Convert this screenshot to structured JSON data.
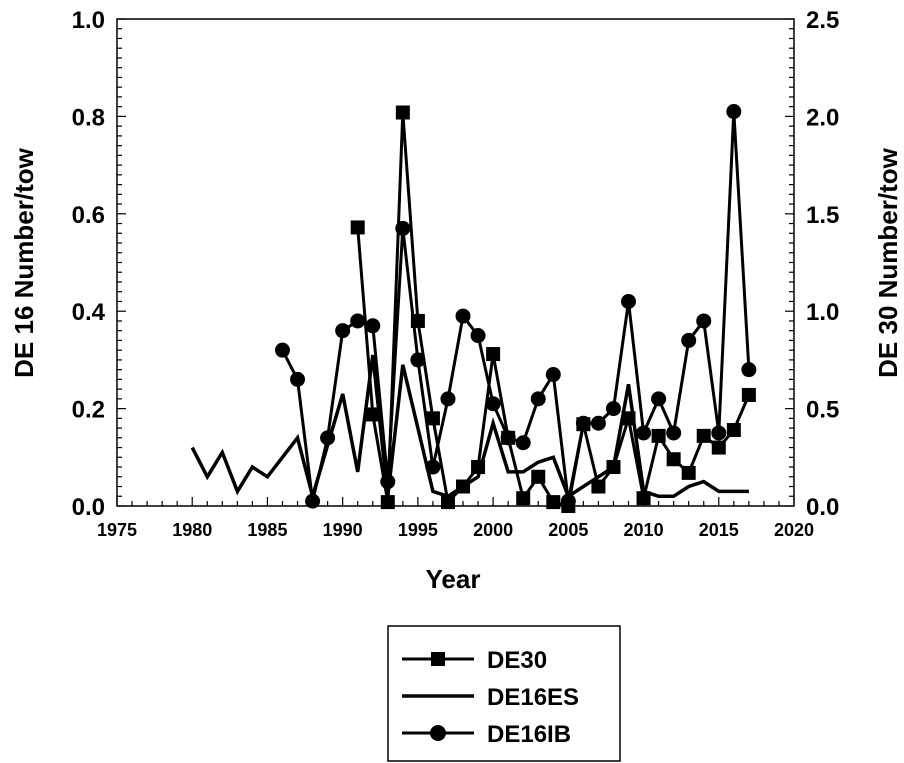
{
  "chart_data": {
    "type": "line",
    "xlabel": "Year",
    "ylabel_left": "DE 16 Number/tow",
    "ylabel_right": "DE 30 Number/tow",
    "xlim": [
      1975,
      2020
    ],
    "ylim_left": [
      0,
      1.0
    ],
    "ylim_right": [
      0,
      2.5
    ],
    "x_ticks": [
      "1975",
      "1980",
      "1985",
      "1990",
      "1995",
      "2000",
      "2005",
      "2010",
      "2015",
      "2020"
    ],
    "y_left_ticks": [
      "0.0",
      "0.2",
      "0.4",
      "0.6",
      "0.8",
      "1.0"
    ],
    "y_right_ticks": [
      "0.0",
      "0.5",
      "1.0",
      "1.5",
      "2.0",
      "2.5"
    ],
    "grid": false,
    "legend_position": "bottom",
    "series": [
      {
        "name": "DE30",
        "axis": "right",
        "marker": "square",
        "x": [
          1991,
          1992,
          1993,
          1994,
          1995,
          1996,
          1997,
          1998,
          1999,
          2000,
          2001,
          2002,
          2003,
          2004,
          2005,
          2006,
          2007,
          2008,
          2009,
          2010,
          2011,
          2012,
          2013,
          2014,
          2015,
          2016,
          2017
        ],
        "y": [
          1.43,
          0.47,
          0.02,
          2.02,
          0.95,
          0.45,
          0.02,
          0.1,
          0.2,
          0.78,
          0.35,
          0.04,
          0.15,
          0.02,
          0.0,
          0.42,
          0.1,
          0.2,
          0.45,
          0.04,
          0.36,
          0.24,
          0.17,
          0.36,
          0.3,
          0.39,
          0.57
        ]
      },
      {
        "name": "DE16ES",
        "axis": "left",
        "marker": "none",
        "x": [
          1980,
          1981,
          1982,
          1983,
          1984,
          1985,
          1987,
          1988,
          1990,
          1991,
          1992,
          1993,
          1994,
          1995,
          1996,
          1997,
          1998,
          1999,
          2000,
          2001,
          2002,
          2003,
          2004,
          2005,
          2006,
          2007,
          2008,
          2009,
          2010,
          2011,
          2012,
          2013,
          2014,
          2015,
          2016,
          2017
        ],
        "y": [
          0.12,
          0.06,
          0.11,
          0.03,
          0.08,
          0.06,
          0.14,
          0.02,
          0.23,
          0.07,
          0.31,
          0.02,
          0.29,
          0.16,
          0.03,
          0.02,
          0.04,
          0.06,
          0.17,
          0.07,
          0.07,
          0.09,
          0.1,
          0.02,
          0.04,
          0.06,
          0.08,
          0.25,
          0.03,
          0.02,
          0.02,
          0.04,
          0.05,
          0.03,
          0.03,
          0.03
        ]
      },
      {
        "name": "DE16IB",
        "axis": "left",
        "marker": "circle",
        "x": [
          1986,
          1987,
          1988,
          1989,
          1990,
          1991,
          1992,
          1993,
          1994,
          1995,
          1996,
          1997,
          1998,
          1999,
          2000,
          2001,
          2002,
          2003,
          2004,
          2005,
          2006,
          2007,
          2008,
          2009,
          2010,
          2011,
          2012,
          2013,
          2014,
          2015,
          2016,
          2017
        ],
        "y": [
          0.32,
          0.26,
          0.01,
          0.14,
          0.36,
          0.38,
          0.37,
          0.05,
          0.57,
          0.3,
          0.08,
          0.22,
          0.39,
          0.35,
          0.21,
          0.14,
          0.13,
          0.22,
          0.27,
          0.01,
          0.17,
          0.17,
          0.2,
          0.42,
          0.15,
          0.22,
          0.15,
          0.34,
          0.38,
          0.15,
          0.81,
          0.28
        ]
      }
    ]
  }
}
